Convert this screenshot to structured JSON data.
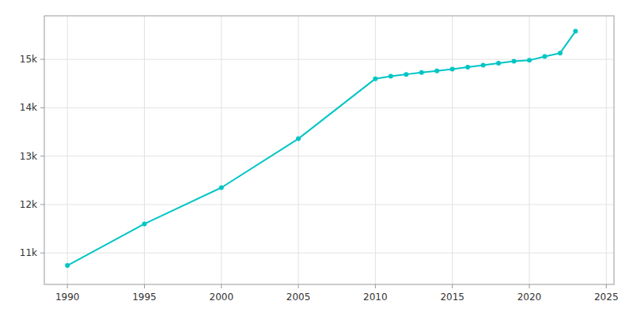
{
  "chart_data": {
    "type": "line",
    "x": [
      1990,
      1995,
      2000,
      2005,
      2010,
      2011,
      2012,
      2013,
      2014,
      2015,
      2016,
      2017,
      2018,
      2019,
      2020,
      2021,
      2022,
      2023
    ],
    "values": [
      10740,
      11600,
      12350,
      13360,
      14600,
      14650,
      14690,
      14730,
      14760,
      14800,
      14840,
      14880,
      14920,
      14960,
      14980,
      15060,
      15130,
      15580
    ],
    "color": "#00C5C5",
    "marker": "circle",
    "xlim": [
      1988.5,
      2025.5
    ],
    "ylim": [
      10350,
      15900
    ],
    "xticks": [
      1990,
      1995,
      2000,
      2005,
      2010,
      2015,
      2020,
      2025
    ],
    "yticks": [
      {
        "value": 11000,
        "label": "11k"
      },
      {
        "value": 12000,
        "label": "12k"
      },
      {
        "value": 13000,
        "label": "13k"
      },
      {
        "value": 14000,
        "label": "14k"
      },
      {
        "value": 15000,
        "label": "15k"
      }
    ],
    "grid": true
  }
}
